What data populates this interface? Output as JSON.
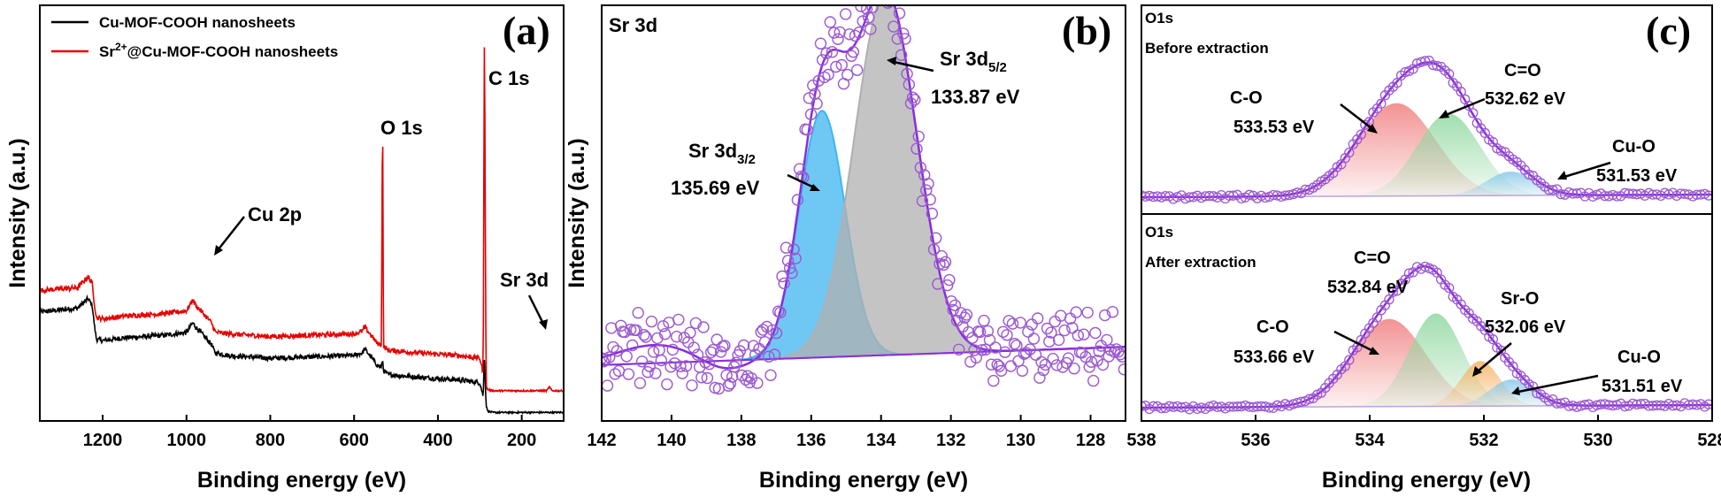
{
  "colors": {
    "black_series": "#000000",
    "red_series": "#e60000",
    "envelope": "#8a2be2",
    "points": "#9b59d0",
    "peak_blue": "#3fb6f0",
    "peak_gray": "#b0b0b0",
    "peak_red": "#f08080",
    "peak_green": "#90d8a0",
    "peak_orange": "#f5b060",
    "peak_lightblue": "#88c8e8"
  },
  "chart_data": [
    {
      "type": "line",
      "panel_label": "(a)",
      "xlabel": "Binding energy (eV)",
      "ylabel": "Intensity (a.u.)",
      "xlim": [
        1350,
        100
      ],
      "x_reversed": true,
      "xticks": [
        "1200",
        "1000",
        "800",
        "600",
        "400",
        "200"
      ],
      "legend": [
        {
          "name": "Cu-MOF-COOH nanosheets",
          "color": "#000000"
        },
        {
          "name_prefix": "Sr",
          "name_sup": "2+",
          "name_suffix": "@Cu-MOF-COOH nanosheets",
          "color": "#e60000"
        }
      ],
      "annotations": [
        {
          "text": "C 1s",
          "x": 285
        },
        {
          "text": "O 1s",
          "x": 532
        },
        {
          "text": "Cu 2p",
          "x": 933
        },
        {
          "text": "Sr 3d",
          "x": 134
        }
      ],
      "series": [
        {
          "name": "Cu-MOF-COOH nanosheets",
          "color": "#000000",
          "x": [
            1350,
            1260,
            1235,
            1225,
            1220,
            1215,
            1200,
            1150,
            1100,
            1050,
            1000,
            985,
            978,
            960,
            940,
            935,
            930,
            900,
            850,
            800,
            700,
            600,
            580,
            575,
            560,
            545,
            535,
            532,
            530,
            520,
            450,
            350,
            300,
            292,
            289,
            285,
            281,
            270,
            200,
            150,
            100
          ],
          "y": [
            0.385,
            0.4,
            0.435,
            0.41,
            0.34,
            0.285,
            0.28,
            0.29,
            0.295,
            0.3,
            0.31,
            0.345,
            0.33,
            0.3,
            0.265,
            0.245,
            0.235,
            0.225,
            0.22,
            0.215,
            0.22,
            0.225,
            0.235,
            0.25,
            0.22,
            0.19,
            0.18,
            0.21,
            0.17,
            0.155,
            0.145,
            0.135,
            0.125,
            0.075,
            0.22,
            0.04,
            0.02,
            0.015,
            0.015,
            0.015,
            0.015
          ]
        },
        {
          "name": "Sr2+@Cu-MOF-COOH nanosheets",
          "color": "#e60000",
          "x": [
            1350,
            1260,
            1235,
            1225,
            1220,
            1215,
            1200,
            1150,
            1100,
            1050,
            1000,
            985,
            978,
            960,
            940,
            935,
            930,
            900,
            850,
            800,
            700,
            600,
            580,
            575,
            560,
            545,
            535,
            532,
            530,
            520,
            450,
            350,
            300,
            292,
            289,
            285,
            281,
            270,
            200,
            140,
            134,
            128,
            100
          ],
          "y": [
            0.465,
            0.475,
            0.515,
            0.49,
            0.42,
            0.365,
            0.36,
            0.37,
            0.375,
            0.38,
            0.39,
            0.43,
            0.41,
            0.38,
            0.345,
            0.325,
            0.31,
            0.305,
            0.3,
            0.295,
            0.3,
            0.305,
            0.315,
            0.33,
            0.3,
            0.27,
            0.265,
            1.18,
            0.26,
            0.245,
            0.235,
            0.225,
            0.215,
            0.16,
            1.45,
            0.11,
            0.1,
            0.095,
            0.095,
            0.095,
            0.11,
            0.095,
            0.095
          ]
        }
      ]
    },
    {
      "type": "scatter",
      "panel_label": "(b)",
      "title": "Sr 3d",
      "xlabel": "Binding energy (eV)",
      "ylabel": "Intensity (a.u.)",
      "xlim": [
        142,
        127
      ],
      "x_reversed": true,
      "xticks": [
        "142",
        "140",
        "138",
        "136",
        "134",
        "132",
        "130",
        "128"
      ],
      "annotations": [
        {
          "main": "Sr 3d",
          "sub": "3/2",
          "value": "135.69 eV"
        },
        {
          "main": "Sr 3d",
          "sub": "5/2",
          "value": "133.87 eV"
        }
      ],
      "background_line": {
        "x": [
          142,
          127
        ],
        "y": [
          0.13,
          0.18
        ]
      },
      "components": [
        {
          "center": 135.69,
          "height": 0.68,
          "fwhm": 1.55,
          "color": "#3fb6f0"
        },
        {
          "center": 133.87,
          "height": 1.0,
          "fwhm": 2.1,
          "color": "#b0b0b0"
        }
      ]
    },
    {
      "type": "scatter",
      "panel_label": "(c)",
      "xlabel": "Binding energy (eV)",
      "xlim": [
        538,
        528
      ],
      "x_reversed": true,
      "xticks": [
        "538",
        "536",
        "534",
        "532",
        "530",
        "528"
      ],
      "subplots": [
        {
          "title": "O1s",
          "subtitle": "Before extraction",
          "components": [
            {
              "label": "C-O",
              "value": "533.53 eV",
              "center": 533.53,
              "height": 0.7,
              "fwhm": 1.6,
              "color": "#f08080"
            },
            {
              "label": "C=O",
              "value": "532.62 eV",
              "center": 532.62,
              "height": 0.62,
              "fwhm": 1.3,
              "color": "#90d8a0"
            },
            {
              "label": "Cu-O",
              "value": "531.53 eV",
              "center": 531.53,
              "height": 0.18,
              "fwhm": 1.0,
              "color": "#88c8e8"
            }
          ]
        },
        {
          "title": "O1s",
          "subtitle": "After extraction",
          "components": [
            {
              "label": "C-O",
              "value": "533.66 eV",
              "center": 533.66,
              "height": 0.66,
              "fwhm": 1.5,
              "color": "#f08080"
            },
            {
              "label": "C=O",
              "value": "532.84 eV",
              "center": 532.84,
              "height": 0.7,
              "fwhm": 1.1,
              "color": "#90d8a0"
            },
            {
              "label": "Sr-O",
              "value": "532.06 eV",
              "center": 532.06,
              "height": 0.34,
              "fwhm": 0.8,
              "color": "#f5b060"
            },
            {
              "label": "Cu-O",
              "value": "531.51 eV",
              "center": 531.51,
              "height": 0.2,
              "fwhm": 0.9,
              "color": "#88c8e8"
            }
          ]
        }
      ]
    }
  ]
}
